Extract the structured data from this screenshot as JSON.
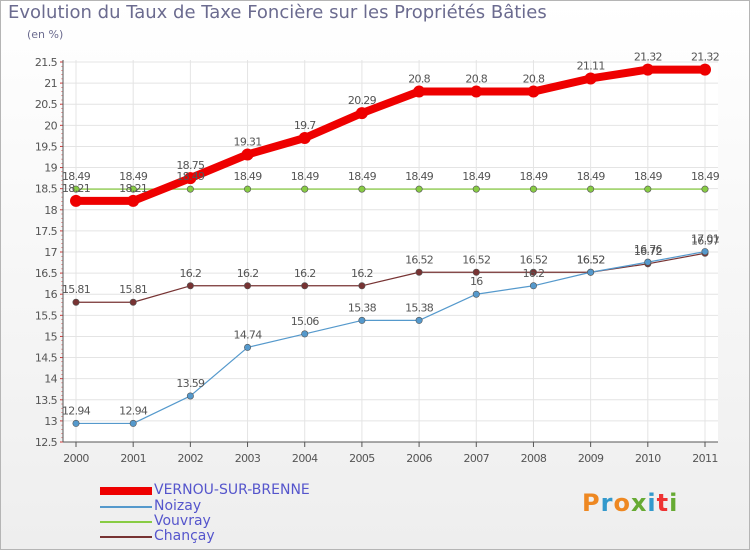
{
  "chart_data": {
    "type": "line",
    "title": "Evolution du Taux de Taxe Foncière sur les Propriétés Bâties",
    "ylabel": "(en %)",
    "xlabel": "",
    "categories": [
      "2000",
      "2001",
      "2002",
      "2003",
      "2004",
      "2005",
      "2006",
      "2007",
      "2008",
      "2009",
      "2010",
      "2011"
    ],
    "ylim": [
      12.5,
      21.5
    ],
    "yticks": [
      "12.5",
      "13",
      "13.5",
      "14",
      "14.5",
      "15",
      "15.5",
      "16",
      "16.5",
      "17",
      "17.5",
      "18",
      "18.5",
      "19",
      "19.5",
      "20",
      "20.5",
      "21",
      "21.5"
    ],
    "grid": true,
    "legend_position": "bottom-left",
    "series": [
      {
        "name": "VERNOU-SUR-BRENNE",
        "color": "#ee0000",
        "values": [
          18.21,
          18.21,
          18.75,
          19.31,
          19.7,
          20.29,
          20.8,
          20.8,
          20.8,
          21.11,
          21.32,
          21.32
        ],
        "labels": [
          "18.21",
          "18.21",
          "18.75",
          "19.31",
          "19.7",
          "20.29",
          "20.8",
          "20.8",
          "20.8",
          "21.11",
          "21.32",
          "21.32"
        ]
      },
      {
        "name": "Noizay",
        "color": "#5599cc",
        "values": [
          12.94,
          12.94,
          13.59,
          14.74,
          15.06,
          15.38,
          15.38,
          16,
          16.2,
          16.52,
          16.76,
          17.01
        ],
        "labels": [
          "12.94",
          "12.94",
          "13.59",
          "14.74",
          "15.06",
          "15.38",
          "15.38",
          "16",
          "16.2",
          "16.52",
          "16.76",
          "17.01"
        ]
      },
      {
        "name": "Vouvray",
        "color": "#88cc44",
        "values": [
          18.49,
          18.49,
          18.49,
          18.49,
          18.49,
          18.49,
          18.49,
          18.49,
          18.49,
          18.49,
          18.49,
          18.49
        ],
        "labels": [
          "18.49",
          "18.49",
          "18.49",
          "18.49",
          "18.49",
          "18.49",
          "18.49",
          "18.49",
          "18.49",
          "18.49",
          "18.49",
          "18.49"
        ]
      },
      {
        "name": "Chançay",
        "color": "#773333",
        "values": [
          15.81,
          15.81,
          16.2,
          16.2,
          16.2,
          16.2,
          16.52,
          16.52,
          16.52,
          16.52,
          16.72,
          16.97
        ],
        "labels": [
          "15.81",
          "15.81",
          "16.2",
          "16.2",
          "16.2",
          "16.2",
          "16.52",
          "16.52",
          "16.52",
          "16.52",
          "16.72",
          "16.97"
        ]
      }
    ]
  },
  "legend": {
    "items": [
      {
        "label": "VERNOU-SUR-BRENNE",
        "color": "#ee0000"
      },
      {
        "label": "Noizay",
        "color": "#5599cc"
      },
      {
        "label": "Vouvray",
        "color": "#88cc44"
      },
      {
        "label": "Chançay",
        "color": "#773333"
      }
    ],
    "text_color": "#5555cc"
  },
  "logo": {
    "text": "Proxiti",
    "colors": [
      "#ee8822",
      "#3399cc",
      "#ee8822",
      "#66aa33",
      "#3399cc",
      "#ee3333",
      "#66aa33"
    ]
  }
}
